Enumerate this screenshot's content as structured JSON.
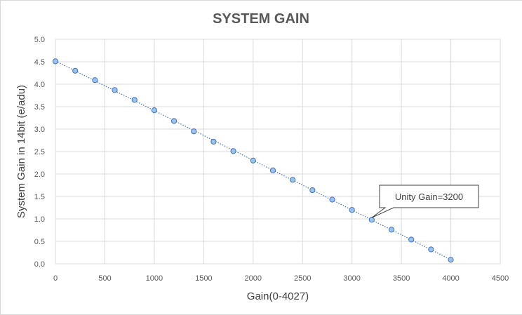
{
  "chart_data": {
    "type": "scatter",
    "title": "SYSTEM GAIN",
    "xlabel": "Gain(0-4027)",
    "ylabel": "System Gain in 14bit (e/adu)",
    "xlim": [
      0,
      4500
    ],
    "ylim": [
      0,
      5.0
    ],
    "x_ticks": [
      "0",
      "500",
      "1000",
      "1500",
      "2000",
      "2500",
      "3000",
      "3500",
      "4000",
      "4500"
    ],
    "y_ticks": [
      "0.0",
      "0.5",
      "1.0",
      "1.5",
      "2.0",
      "2.5",
      "3.0",
      "3.5",
      "4.0",
      "4.5",
      "5.0"
    ],
    "grid": true,
    "trendline": true,
    "series": [
      {
        "x": [
          0,
          200,
          400,
          600,
          800,
          1000,
          1200,
          1400,
          1600,
          1800,
          2000,
          2200,
          2400,
          2600,
          2800,
          3000,
          3200,
          3400,
          3600,
          3800,
          4000
        ],
        "y": [
          4.51,
          4.3,
          4.09,
          3.87,
          3.65,
          3.42,
          3.18,
          2.95,
          2.72,
          2.51,
          2.3,
          2.08,
          1.87,
          1.64,
          1.43,
          1.2,
          0.98,
          0.76,
          0.54,
          0.32,
          0.09
        ]
      }
    ],
    "annotations": [
      {
        "text": "Unity Gain=3200",
        "x": 3200,
        "y": 0.98
      }
    ],
    "colors": {
      "marker_fill": "#9dc3e6",
      "marker_stroke": "#4472c4",
      "trendline": "#4472c4",
      "grid": "#d9d9d9"
    }
  }
}
